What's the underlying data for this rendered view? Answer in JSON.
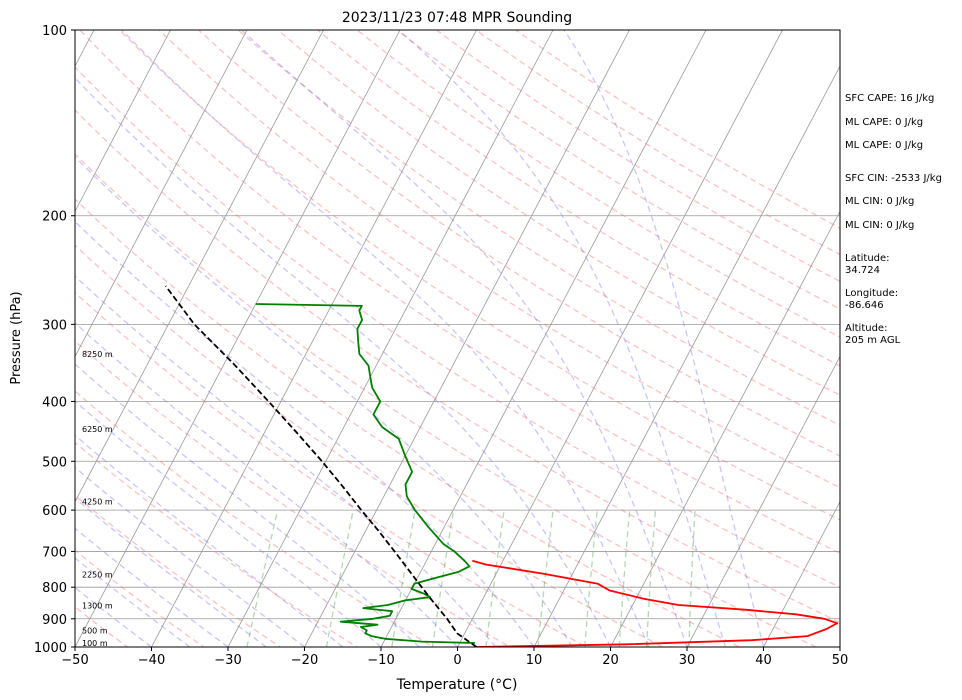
{
  "chart_data": {
    "type": "line",
    "subtype": "skew-t log-p sounding",
    "title": "2023/11/23 07:48 MPR Sounding",
    "xlabel": "Temperature (°C)",
    "ylabel": "Pressure (hPa)",
    "xlim": [
      -50,
      50
    ],
    "ylim": [
      1000,
      100
    ],
    "y_scale": "log",
    "x_ticks": [
      "−50",
      "−40",
      "−30",
      "−20",
      "−10",
      "0",
      "10",
      "20",
      "30",
      "40",
      "50"
    ],
    "y_ticks": [
      {
        "p": 1000,
        "label": "1000"
      },
      {
        "p": 900,
        "label": "900"
      },
      {
        "p": 800,
        "label": "800"
      },
      {
        "p": 700,
        "label": "700"
      },
      {
        "p": 600,
        "label": "600"
      },
      {
        "p": 500,
        "label": "500"
      },
      {
        "p": 400,
        "label": "400"
      },
      {
        "p": 300,
        "label": "300"
      },
      {
        "p": 200,
        "label": "200"
      },
      {
        "p": 100,
        "label": "100"
      }
    ],
    "height_labels": [
      {
        "p": 1000,
        "label": "100 m"
      },
      {
        "p": 955,
        "label": "500 m"
      },
      {
        "p": 870,
        "label": "1300 m"
      },
      {
        "p": 775,
        "label": "2250 m"
      },
      {
        "p": 590,
        "label": "4250 m"
      },
      {
        "p": 450,
        "label": "6250 m"
      },
      {
        "p": 340,
        "label": "8250 m"
      }
    ],
    "series": [
      {
        "role": "temperature",
        "color": "#ff0000",
        "points": [
          [
            1000,
            2.5
          ],
          [
            990,
            22
          ],
          [
            975,
            38
          ],
          [
            960,
            45
          ],
          [
            935,
            47
          ],
          [
            915,
            48
          ],
          [
            900,
            46
          ],
          [
            885,
            42
          ],
          [
            870,
            35
          ],
          [
            855,
            26
          ],
          [
            835,
            21
          ],
          [
            810,
            16
          ],
          [
            790,
            14
          ],
          [
            760,
            6
          ],
          [
            735,
            -2
          ],
          [
            725,
            -4
          ]
        ]
      },
      {
        "role": "dewpoint",
        "color": "#008000",
        "points": [
          [
            985,
            2
          ],
          [
            980,
            -5
          ],
          [
            970,
            -10
          ],
          [
            960,
            -12
          ],
          [
            950,
            -13
          ],
          [
            940,
            -13
          ],
          [
            928,
            -14
          ],
          [
            920,
            -12
          ],
          [
            910,
            -17
          ],
          [
            900,
            -13
          ],
          [
            890,
            -11
          ],
          [
            875,
            -11
          ],
          [
            865,
            -15
          ],
          [
            855,
            -12
          ],
          [
            840,
            -10
          ],
          [
            830,
            -7
          ],
          [
            820,
            -8
          ],
          [
            805,
            -10
          ],
          [
            790,
            -10
          ],
          [
            775,
            -8
          ],
          [
            755,
            -5
          ],
          [
            740,
            -4
          ],
          [
            725,
            -5
          ],
          [
            700,
            -7
          ],
          [
            680,
            -9
          ],
          [
            640,
            -12
          ],
          [
            600,
            -15
          ],
          [
            570,
            -17
          ],
          [
            545,
            -18
          ],
          [
            520,
            -18
          ],
          [
            490,
            -20
          ],
          [
            460,
            -22
          ],
          [
            440,
            -25
          ],
          [
            420,
            -27
          ],
          [
            410,
            -27
          ],
          [
            400,
            -27
          ],
          [
            380,
            -29
          ],
          [
            365,
            -30
          ],
          [
            350,
            -31
          ],
          [
            335,
            -33
          ],
          [
            320,
            -34
          ],
          [
            305,
            -35
          ],
          [
            295,
            -35
          ],
          [
            285,
            -36
          ],
          [
            280,
            -36
          ],
          [
            278,
            -50
          ]
        ]
      },
      {
        "role": "parcel",
        "color": "#000000",
        "dashed": true,
        "points": [
          [
            1000,
            2.5
          ],
          [
            950,
            -1
          ],
          [
            900,
            -3.3
          ],
          [
            850,
            -6
          ],
          [
            800,
            -8.8
          ],
          [
            750,
            -11.7
          ],
          [
            700,
            -14.8
          ],
          [
            650,
            -18.2
          ],
          [
            600,
            -22
          ],
          [
            550,
            -26
          ],
          [
            500,
            -30.5
          ],
          [
            450,
            -35.7
          ],
          [
            400,
            -41.6
          ],
          [
            350,
            -48.4
          ],
          [
            300,
            -56.6
          ],
          [
            260,
            -63
          ]
        ]
      }
    ],
    "grid": true
  },
  "side_panel": {
    "sfc_cape": "SFC CAPE: 16 J/kg",
    "ml_cape_1": "ML CAPE: 0 J/kg",
    "ml_cape_2": "ML CAPE: 0 J/kg",
    "sfc_cin": "SFC CIN: -2533 J/kg",
    "ml_cin_1": "ML CIN: 0 J/kg",
    "ml_cin_2": "ML CIN: 0 J/kg",
    "latitude": "Latitude:\n34.724",
    "longitude": "Longitude:\n-86.646",
    "altitude": "Altitude:\n205 m AGL"
  }
}
